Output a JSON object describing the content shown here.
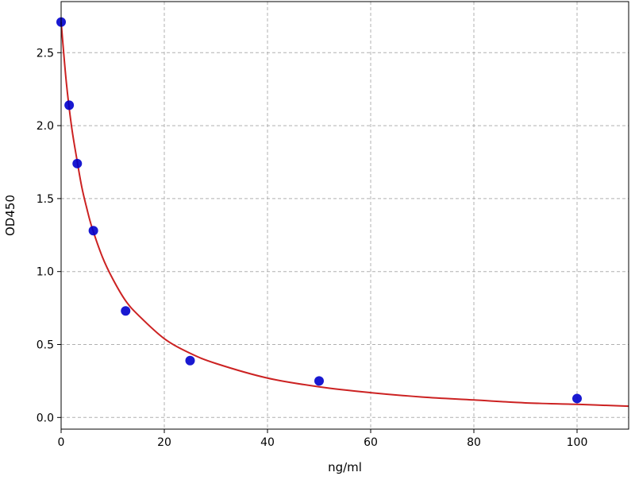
{
  "chart_data": {
    "type": "scatter",
    "title": "",
    "xlabel": "ng/ml",
    "ylabel": "OD450",
    "xlim": [
      0,
      110
    ],
    "ylim": [
      -0.08,
      2.85
    ],
    "grid": true,
    "x_ticks": [
      0,
      20,
      40,
      60,
      80,
      100
    ],
    "x_tick_labels": [
      "0",
      "20",
      "40",
      "60",
      "80",
      "100"
    ],
    "y_ticks": [
      0.0,
      0.5,
      1.0,
      1.5,
      2.0,
      2.5
    ],
    "y_tick_labels": [
      "0.0",
      "0.5",
      "1.0",
      "1.5",
      "2.0",
      "2.5"
    ],
    "series": [
      {
        "kind": "points",
        "color": "#0000cc",
        "x": [
          0,
          1.56,
          3.12,
          6.25,
          12.5,
          25,
          50,
          100
        ],
        "y": [
          2.71,
          2.14,
          1.74,
          1.28,
          0.73,
          0.39,
          0.25,
          0.13
        ]
      },
      {
        "kind": "fit-curve",
        "color": "#cc2222",
        "x": [
          0,
          1,
          2,
          3,
          4,
          5,
          6,
          8,
          10,
          12.5,
          15,
          20,
          25,
          30,
          40,
          50,
          60,
          70,
          80,
          90,
          100,
          110
        ],
        "y": [
          2.71,
          2.3,
          2.0,
          1.78,
          1.58,
          1.43,
          1.3,
          1.1,
          0.95,
          0.8,
          0.7,
          0.54,
          0.44,
          0.37,
          0.27,
          0.21,
          0.17,
          0.14,
          0.12,
          0.1,
          0.09,
          0.077
        ]
      }
    ]
  }
}
